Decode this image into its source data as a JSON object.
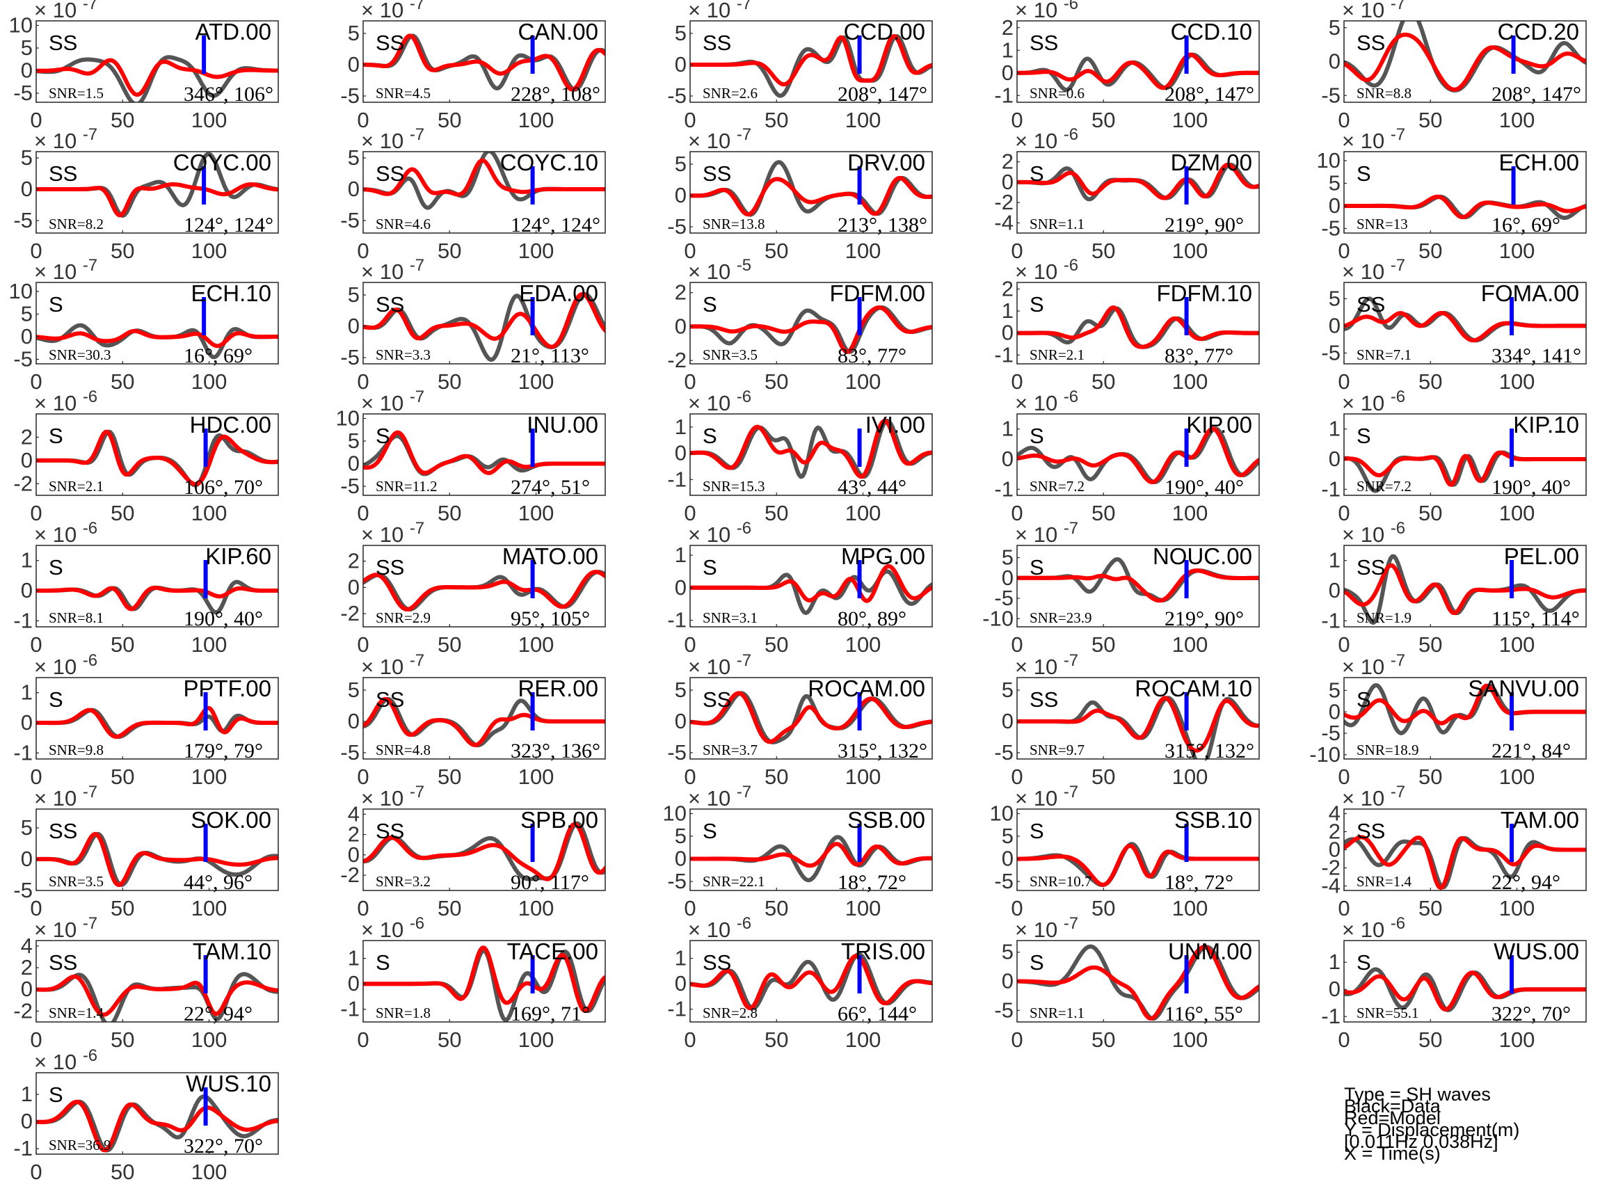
{
  "chart_data": {
    "type": "line",
    "xlim": [
      0,
      140
    ],
    "xticks": [
      0,
      50,
      100
    ],
    "series_legend": [
      "Data",
      "Model"
    ],
    "colors": {
      "data": "#555555",
      "model": "#ff0000",
      "marker": "#0000ff",
      "axis": "#262626"
    },
    "legend": {
      "lines": [
        "Type = SH waves",
        "Black=Data",
        "Red=Model",
        "Y = Displacement(m)",
        "  [0.011Hz 0.038Hz]",
        "X = Time(s)"
      ],
      "placement": "bottom-right"
    },
    "panels": [
      {
        "station": "ATD.00",
        "phase": "SS",
        "snr": "SNR=1.5",
        "angles": "346°, 106°",
        "exp": "-7",
        "ylim": [
          -7,
          11
        ],
        "yticks": [
          -5,
          0,
          5,
          10
        ],
        "marker": 97
      },
      {
        "station": "CAN.00",
        "phase": "SS",
        "snr": "SNR=4.5",
        "angles": "228°, 108°",
        "exp": "-7",
        "ylim": [
          -6,
          7
        ],
        "yticks": [
          -5,
          0,
          5
        ],
        "marker": 98
      },
      {
        "station": "CCD.00",
        "phase": "SS",
        "snr": "SNR=2.6",
        "angles": "208°, 147°",
        "exp": "-7",
        "ylim": [
          -6,
          7
        ],
        "yticks": [
          -5,
          0,
          5
        ],
        "marker": 98
      },
      {
        "station": "CCD.10",
        "phase": "SS",
        "snr": "SNR=0.6",
        "angles": "208°, 147°",
        "exp": "-6",
        "ylim": [
          -1.3,
          2.3
        ],
        "yticks": [
          -1,
          0,
          1,
          2
        ],
        "marker": 98
      },
      {
        "station": "CCD.20",
        "phase": "SS",
        "snr": "SNR=8.8",
        "angles": "208°, 147°",
        "exp": "-7",
        "ylim": [
          -6,
          6
        ],
        "yticks": [
          -5,
          0,
          5
        ],
        "marker": 98
      },
      {
        "station": "COYC.00",
        "phase": "SS",
        "snr": "SNR=8.2",
        "angles": "124°, 124°",
        "exp": "-7",
        "ylim": [
          -7,
          6
        ],
        "yticks": [
          -5,
          0,
          5
        ],
        "marker": 97
      },
      {
        "station": "COYC.10",
        "phase": "SS",
        "snr": "SNR=4.6",
        "angles": "124°, 124°",
        "exp": "-7",
        "ylim": [
          -7,
          6
        ],
        "yticks": [
          -5,
          0,
          5
        ],
        "marker": 98
      },
      {
        "station": "DRV.00",
        "phase": "SS",
        "snr": "SNR=13.8",
        "angles": "213°, 138°",
        "exp": "-7",
        "ylim": [
          -6,
          7
        ],
        "yticks": [
          -5,
          0,
          5
        ],
        "marker": 98
      },
      {
        "station": "DZM.00",
        "phase": "S",
        "snr": "SNR=1.1",
        "angles": "219°, 90°",
        "exp": "-6",
        "ylim": [
          -5,
          3
        ],
        "yticks": [
          -4,
          -2,
          0,
          2
        ],
        "marker": 98
      },
      {
        "station": "ECH.00",
        "phase": "S",
        "snr": "SNR=13",
        "angles": "16°, 69°",
        "exp": "-7",
        "ylim": [
          -6,
          12
        ],
        "yticks": [
          -5,
          0,
          5,
          10
        ],
        "marker": 98
      },
      {
        "station": "ECH.10",
        "phase": "S",
        "snr": "SNR=30.3",
        "angles": "16°, 69°",
        "exp": "-7",
        "ylim": [
          -6,
          12
        ],
        "yticks": [
          -5,
          0,
          5,
          10
        ],
        "marker": 97
      },
      {
        "station": "EDA.00",
        "phase": "SS",
        "snr": "SNR=3.3",
        "angles": "21°, 113°",
        "exp": "-7",
        "ylim": [
          -6,
          7
        ],
        "yticks": [
          -5,
          0,
          5
        ],
        "marker": 98
      },
      {
        "station": "FDFM.00",
        "phase": "S",
        "snr": "SNR=3.5",
        "angles": "83°, 77°",
        "exp": "-5",
        "ylim": [
          -2.2,
          2.6
        ],
        "yticks": [
          -2,
          0,
          2
        ],
        "marker": 98
      },
      {
        "station": "FDFM.10",
        "phase": "S",
        "snr": "SNR=2.1",
        "angles": "83°, 77°",
        "exp": "-6",
        "ylim": [
          -1.4,
          2.3
        ],
        "yticks": [
          -1,
          0,
          1,
          2
        ],
        "marker": 98
      },
      {
        "station": "FOMA.00",
        "phase": "SS",
        "snr": "SNR=7.1",
        "angles": "334°, 141°",
        "exp": "-7",
        "ylim": [
          -7,
          8
        ],
        "yticks": [
          -5,
          0,
          5
        ],
        "marker": 97
      },
      {
        "station": "HDC.00",
        "phase": "S",
        "snr": "SNR=2.1",
        "angles": "106°, 70°",
        "exp": "-6",
        "ylim": [
          -3,
          4
        ],
        "yticks": [
          -2,
          0,
          2
        ],
        "marker": 98
      },
      {
        "station": "INU.00",
        "phase": "S",
        "snr": "SNR=11.2",
        "angles": "274°, 51°",
        "exp": "-7",
        "ylim": [
          -7,
          11
        ],
        "yticks": [
          -5,
          0,
          5,
          10
        ],
        "marker": 98
      },
      {
        "station": "IVI.00",
        "phase": "S",
        "snr": "SNR=15.3",
        "angles": "43°, 44°",
        "exp": "-6",
        "ylim": [
          -1.6,
          1.5
        ],
        "yticks": [
          -1,
          0,
          1
        ],
        "marker": 98
      },
      {
        "station": "KIP.00",
        "phase": "S",
        "snr": "SNR=7.2",
        "angles": "190°, 40°",
        "exp": "-6",
        "ylim": [
          -1.2,
          1.5
        ],
        "yticks": [
          -1,
          0,
          1
        ],
        "marker": 98
      },
      {
        "station": "KIP.10",
        "phase": "S",
        "snr": "SNR=7.2",
        "angles": "190°, 40°",
        "exp": "-6",
        "ylim": [
          -1.2,
          1.5
        ],
        "yticks": [
          -1,
          0,
          1
        ],
        "marker": 97
      },
      {
        "station": "KIP.60",
        "phase": "S",
        "snr": "SNR=8.1",
        "angles": "190°, 40°",
        "exp": "-6",
        "ylim": [
          -1.2,
          1.5
        ],
        "yticks": [
          -1,
          0,
          1
        ],
        "marker": 98
      },
      {
        "station": "MATO.00",
        "phase": "SS",
        "snr": "SNR=2.9",
        "angles": "95°, 105°",
        "exp": "-7",
        "ylim": [
          -3,
          3.2
        ],
        "yticks": [
          -2,
          0,
          2
        ],
        "marker": 98
      },
      {
        "station": "MPG.00",
        "phase": "S",
        "snr": "SNR=3.1",
        "angles": "80°, 89°",
        "exp": "-6",
        "ylim": [
          -1.2,
          1.3
        ],
        "yticks": [
          -1,
          0,
          1
        ],
        "marker": 98
      },
      {
        "station": "NOUC.00",
        "phase": "S",
        "snr": "SNR=23.9",
        "angles": "219°, 90°",
        "exp": "-7",
        "ylim": [
          -12,
          8
        ],
        "yticks": [
          -10,
          -5,
          0,
          5
        ],
        "marker": 98
      },
      {
        "station": "PEL.00",
        "phase": "SS",
        "snr": "SNR=1.9",
        "angles": "115°, 114°",
        "exp": "-6",
        "ylim": [
          -1.2,
          1.5
        ],
        "yticks": [
          -1,
          0,
          1
        ],
        "marker": 97
      },
      {
        "station": "PPTF.00",
        "phase": "S",
        "snr": "SNR=9.8",
        "angles": "179°, 79°",
        "exp": "-6",
        "ylim": [
          -1.2,
          1.5
        ],
        "yticks": [
          -1,
          0,
          1
        ],
        "marker": 98
      },
      {
        "station": "RER.00",
        "phase": "SS",
        "snr": "SNR=4.8",
        "angles": "323°, 136°",
        "exp": "-7",
        "ylim": [
          -6,
          7
        ],
        "yticks": [
          -5,
          0,
          5
        ],
        "marker": 98
      },
      {
        "station": "ROCAM.00",
        "phase": "SS",
        "snr": "SNR=3.7",
        "angles": "315°, 132°",
        "exp": "-7",
        "ylim": [
          -6,
          7
        ],
        "yticks": [
          -5,
          0,
          5
        ],
        "marker": 98
      },
      {
        "station": "ROCAM.10",
        "phase": "SS",
        "snr": "SNR=9.7",
        "angles": "315°, 132°",
        "exp": "-7",
        "ylim": [
          -6,
          7
        ],
        "yticks": [
          -5,
          0,
          5
        ],
        "marker": 98
      },
      {
        "station": "SANVU.00",
        "phase": "S",
        "snr": "SNR=18.9",
        "angles": "221°, 84°",
        "exp": "-7",
        "ylim": [
          -11,
          8
        ],
        "yticks": [
          -10,
          -5,
          0,
          5
        ],
        "marker": 97
      },
      {
        "station": "SOK.00",
        "phase": "SS",
        "snr": "SNR=3.5",
        "angles": "44°, 96°",
        "exp": "-7",
        "ylim": [
          -5,
          8
        ],
        "yticks": [
          -5,
          0,
          5
        ],
        "marker": 98
      },
      {
        "station": "SPB.00",
        "phase": "SS",
        "snr": "SNR=3.2",
        "angles": "90°, 117°",
        "exp": "-7",
        "ylim": [
          -3.5,
          4.5
        ],
        "yticks": [
          -2,
          0,
          2,
          4
        ],
        "marker": 98
      },
      {
        "station": "SSB.00",
        "phase": "S",
        "snr": "SNR=22.1",
        "angles": "18°, 72°",
        "exp": "-7",
        "ylim": [
          -7,
          11
        ],
        "yticks": [
          -5,
          0,
          5,
          10
        ],
        "marker": 98
      },
      {
        "station": "SSB.10",
        "phase": "S",
        "snr": "SNR=10.7",
        "angles": "18°, 72°",
        "exp": "-7",
        "ylim": [
          -7,
          11
        ],
        "yticks": [
          -5,
          0,
          5,
          10
        ],
        "marker": 98
      },
      {
        "station": "TAM.00",
        "phase": "SS",
        "snr": "SNR=1.4",
        "angles": "22°, 94°",
        "exp": "-7",
        "ylim": [
          -4.5,
          4.5
        ],
        "yticks": [
          -4,
          -2,
          0,
          2,
          4
        ],
        "marker": 97
      },
      {
        "station": "TAM.10",
        "phase": "SS",
        "snr": "SNR=1.4",
        "angles": "22°, 94°",
        "exp": "-7",
        "ylim": [
          -3,
          4.5
        ],
        "yticks": [
          -2,
          0,
          2,
          4
        ],
        "marker": 98
      },
      {
        "station": "TACE.00",
        "phase": "S",
        "snr": "SNR=1.8",
        "angles": "169°, 71°",
        "exp": "-6",
        "ylim": [
          -1.5,
          1.7
        ],
        "yticks": [
          -1,
          0,
          1
        ],
        "marker": 98
      },
      {
        "station": "TRIS.00",
        "phase": "SS",
        "snr": "SNR=2.8",
        "angles": "66°, 144°",
        "exp": "-6",
        "ylim": [
          -1.5,
          1.7
        ],
        "yticks": [
          -1,
          0,
          1
        ],
        "marker": 98
      },
      {
        "station": "UNM.00",
        "phase": "S",
        "snr": "SNR=1.1",
        "angles": "116°, 55°",
        "exp": "-7",
        "ylim": [
          -7,
          7
        ],
        "yticks": [
          -5,
          0,
          5
        ],
        "marker": 98
      },
      {
        "station": "WUS.00",
        "phase": "S",
        "snr": "SNR=55.1",
        "angles": "322°, 70°",
        "exp": "-6",
        "ylim": [
          -1.2,
          1.8
        ],
        "yticks": [
          -1,
          0,
          1
        ],
        "marker": 97
      },
      {
        "station": "WUS.10",
        "phase": "S",
        "snr": "SNR=36.9",
        "angles": "322°, 70°",
        "exp": "-6",
        "ylim": [
          -1.2,
          1.8
        ],
        "yticks": [
          -1,
          0,
          1
        ],
        "marker": 98
      }
    ]
  }
}
